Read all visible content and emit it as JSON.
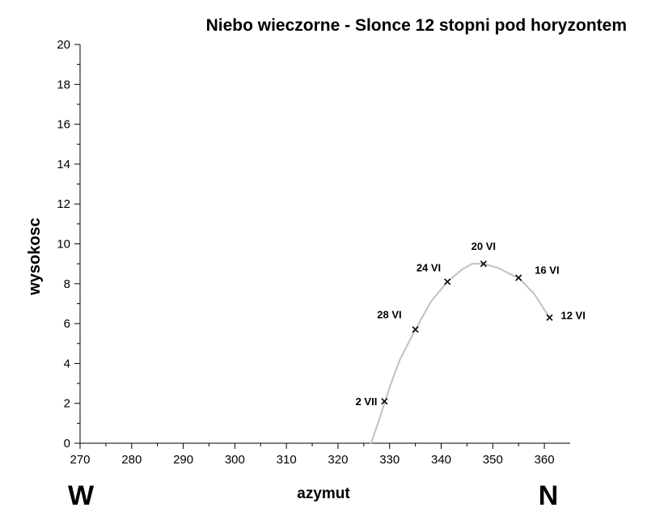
{
  "chart_data": {
    "type": "line",
    "title": "Niebo wieczorne - Slonce 12 stopni pod horyzontem",
    "xlabel": "azymut",
    "ylabel": "wysokosc",
    "xlim": [
      270,
      365
    ],
    "ylim": [
      0,
      20
    ],
    "x_ticks": [
      270,
      280,
      290,
      300,
      310,
      320,
      330,
      340,
      350,
      360
    ],
    "y_ticks": [
      0,
      2,
      4,
      6,
      8,
      10,
      12,
      14,
      16,
      18,
      20
    ],
    "grid": false,
    "legend": "none",
    "series": [
      {
        "line_color": "#c0c0c0",
        "x": [
          326.4,
          328.0,
          330.0,
          332.0,
          335.0,
          338.0,
          341.2,
          344.0,
          346.0,
          348.2,
          351.0,
          354.0,
          355.0,
          358.0,
          361.0
        ],
        "y": [
          0.0,
          1.2,
          2.8,
          4.2,
          5.7,
          7.1,
          8.1,
          8.7,
          9.0,
          9.0,
          8.8,
          8.4,
          8.3,
          7.5,
          6.3
        ]
      }
    ],
    "annotations": [
      {
        "label": "2 VII",
        "x": 329.0,
        "y": 2.1
      },
      {
        "label": "28 VI",
        "x": 335.0,
        "y": 5.7
      },
      {
        "label": "24 VI",
        "x": 341.2,
        "y": 8.1
      },
      {
        "label": "20 VI",
        "x": 348.2,
        "y": 9.0
      },
      {
        "label": "16 VI",
        "x": 355.0,
        "y": 8.3
      },
      {
        "label": "12 VI",
        "x": 361.0,
        "y": 6.3
      }
    ],
    "compass_labels": {
      "left": "W",
      "right": "N"
    }
  }
}
